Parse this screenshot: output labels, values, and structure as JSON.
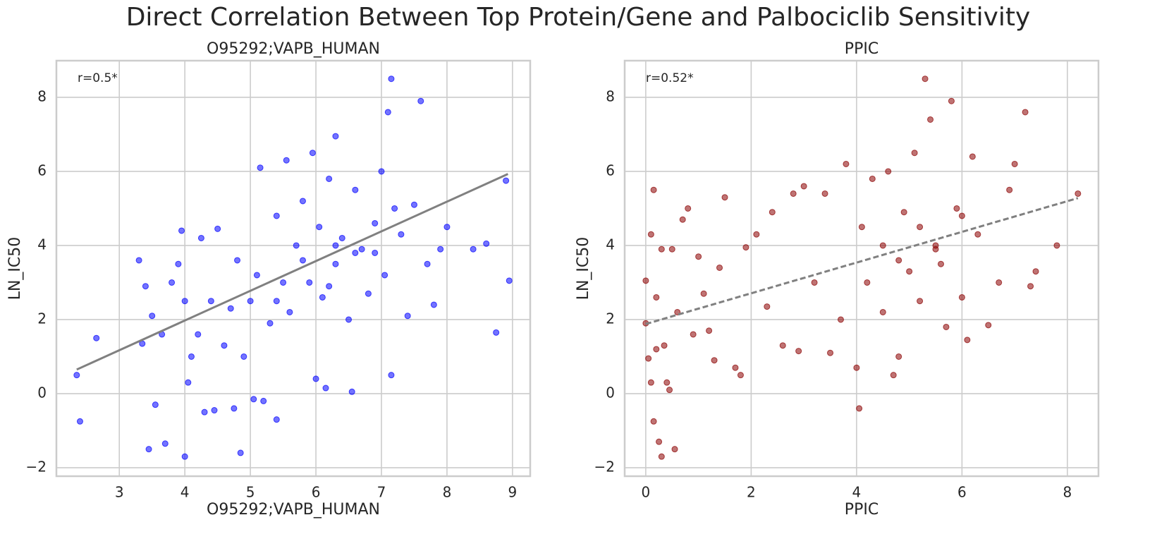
{
  "title": "Direct Correlation Between Top Protein/Gene and Palbociclib Sensitivity",
  "chart_data": [
    {
      "type": "scatter",
      "title": "O95292;VAPB_HUMAN",
      "xlabel": "O95292;VAPB_HUMAN",
      "ylabel": "LN_IC50",
      "annotation": "r=0.5*",
      "color": "#0000ff",
      "grid": true,
      "xlim": [
        2.04,
        9.27
      ],
      "ylim": [
        -2.23,
        8.99
      ],
      "xticks": [
        3,
        4,
        5,
        6,
        7,
        8,
        9
      ],
      "yticks": [
        {
          "value": -2,
          "label": "−2"
        },
        0,
        2,
        4,
        6,
        8
      ],
      "x": [
        2.35,
        2.4,
        2.65,
        3.3,
        3.35,
        3.4,
        3.45,
        3.5,
        3.55,
        3.65,
        3.7,
        3.8,
        3.9,
        3.95,
        4.0,
        4.0,
        4.05,
        4.1,
        4.2,
        4.25,
        4.3,
        4.4,
        4.45,
        4.5,
        4.6,
        4.7,
        4.75,
        4.8,
        4.85,
        4.9,
        5.0,
        5.05,
        5.1,
        5.15,
        5.2,
        5.3,
        5.4,
        5.4,
        5.5,
        5.55,
        5.6,
        5.7,
        5.8,
        5.9,
        5.95,
        6.0,
        6.05,
        6.1,
        6.15,
        6.2,
        6.3,
        6.3,
        6.4,
        6.5,
        6.55,
        6.6,
        6.7,
        6.8,
        6.9,
        7.0,
        7.05,
        7.15,
        7.1,
        7.15,
        7.3,
        7.4,
        7.5,
        7.6,
        7.7,
        7.8,
        7.9,
        8.0,
        8.4,
        8.6,
        8.75,
        8.9,
        8.95,
        6.3,
        6.6,
        5.8,
        6.9,
        6.2,
        5.4,
        7.2
      ],
      "y": [
        0.5,
        -0.75,
        1.5,
        3.6,
        1.35,
        2.9,
        -1.5,
        2.1,
        -0.3,
        1.6,
        -1.35,
        3.0,
        3.5,
        4.4,
        -1.7,
        2.5,
        0.3,
        1.0,
        1.6,
        4.2,
        -0.5,
        2.5,
        -0.45,
        4.45,
        1.3,
        2.3,
        -0.4,
        3.6,
        -1.6,
        1.0,
        2.5,
        -0.15,
        3.2,
        6.1,
        -0.2,
        1.9,
        -0.7,
        4.8,
        3.0,
        6.3,
        2.2,
        4.0,
        5.2,
        3.0,
        6.5,
        0.4,
        4.5,
        2.6,
        0.15,
        5.8,
        6.95,
        3.5,
        4.2,
        2.0,
        0.05,
        5.5,
        3.9,
        2.7,
        4.6,
        6.0,
        3.2,
        0.5,
        7.6,
        8.5,
        4.3,
        2.1,
        5.1,
        7.9,
        3.5,
        2.4,
        3.9,
        4.5,
        3.9,
        4.05,
        1.65,
        5.75,
        3.05,
        4.0,
        3.8,
        3.6,
        3.8,
        2.9,
        2.5,
        5.0
      ],
      "fit": {
        "style": "solid",
        "x": [
          2.35,
          8.93
        ],
        "y": [
          0.65,
          5.93
        ]
      }
    },
    {
      "type": "scatter",
      "title": "PPIC",
      "xlabel": "PPIC",
      "ylabel": "LN_IC50",
      "annotation": "r=0.52*",
      "color": "#8b0000",
      "grid": true,
      "xlim": [
        -0.4,
        8.59
      ],
      "ylim": [
        -2.23,
        8.99
      ],
      "xticks": [
        0,
        2,
        4,
        6,
        8
      ],
      "yticks": [
        {
          "value": -2,
          "label": "−2"
        },
        0,
        2,
        4,
        6,
        8
      ],
      "x": [
        0.0,
        0.0,
        0.05,
        0.1,
        0.1,
        0.15,
        0.15,
        0.2,
        0.2,
        0.25,
        0.3,
        0.3,
        0.35,
        0.4,
        0.45,
        0.5,
        0.55,
        0.6,
        0.7,
        0.8,
        0.9,
        1.0,
        1.1,
        1.2,
        1.3,
        1.4,
        1.5,
        1.7,
        1.8,
        1.9,
        2.1,
        2.3,
        2.4,
        2.6,
        2.8,
        2.9,
        3.0,
        3.2,
        3.4,
        3.5,
        3.7,
        3.8,
        4.0,
        4.05,
        4.1,
        4.2,
        4.3,
        4.5,
        4.6,
        4.7,
        4.8,
        4.9,
        5.0,
        5.1,
        5.2,
        5.3,
        5.4,
        5.5,
        5.6,
        5.7,
        5.8,
        5.9,
        6.0,
        6.1,
        6.2,
        6.3,
        6.5,
        6.7,
        6.9,
        7.0,
        7.2,
        7.3,
        7.4,
        7.8,
        8.2,
        5.2,
        5.5,
        4.8,
        6.0,
        4.5
      ],
      "y": [
        1.9,
        3.05,
        0.95,
        4.3,
        0.3,
        5.5,
        -0.75,
        1.2,
        2.6,
        -1.3,
        -1.7,
        3.9,
        1.3,
        0.3,
        0.1,
        3.9,
        -1.5,
        2.2,
        4.7,
        5.0,
        1.6,
        3.7,
        2.7,
        1.7,
        0.9,
        3.4,
        5.3,
        0.7,
        0.5,
        3.95,
        4.3,
        2.35,
        4.9,
        1.3,
        5.4,
        1.15,
        5.6,
        3.0,
        5.4,
        1.1,
        2.0,
        6.2,
        0.7,
        -0.4,
        4.5,
        3.0,
        5.8,
        2.2,
        6.0,
        0.5,
        1.0,
        4.9,
        3.3,
        6.5,
        2.5,
        8.5,
        7.4,
        4.0,
        3.5,
        1.8,
        7.9,
        5.0,
        2.6,
        1.45,
        6.4,
        4.3,
        1.85,
        3.0,
        5.5,
        6.2,
        7.6,
        2.9,
        3.3,
        4.0,
        5.4,
        4.5,
        3.9,
        3.6,
        4.8,
        4.0
      ],
      "fit": {
        "style": "dashed",
        "x": [
          0.0,
          8.2
        ],
        "y": [
          1.88,
          5.28
        ]
      }
    }
  ]
}
